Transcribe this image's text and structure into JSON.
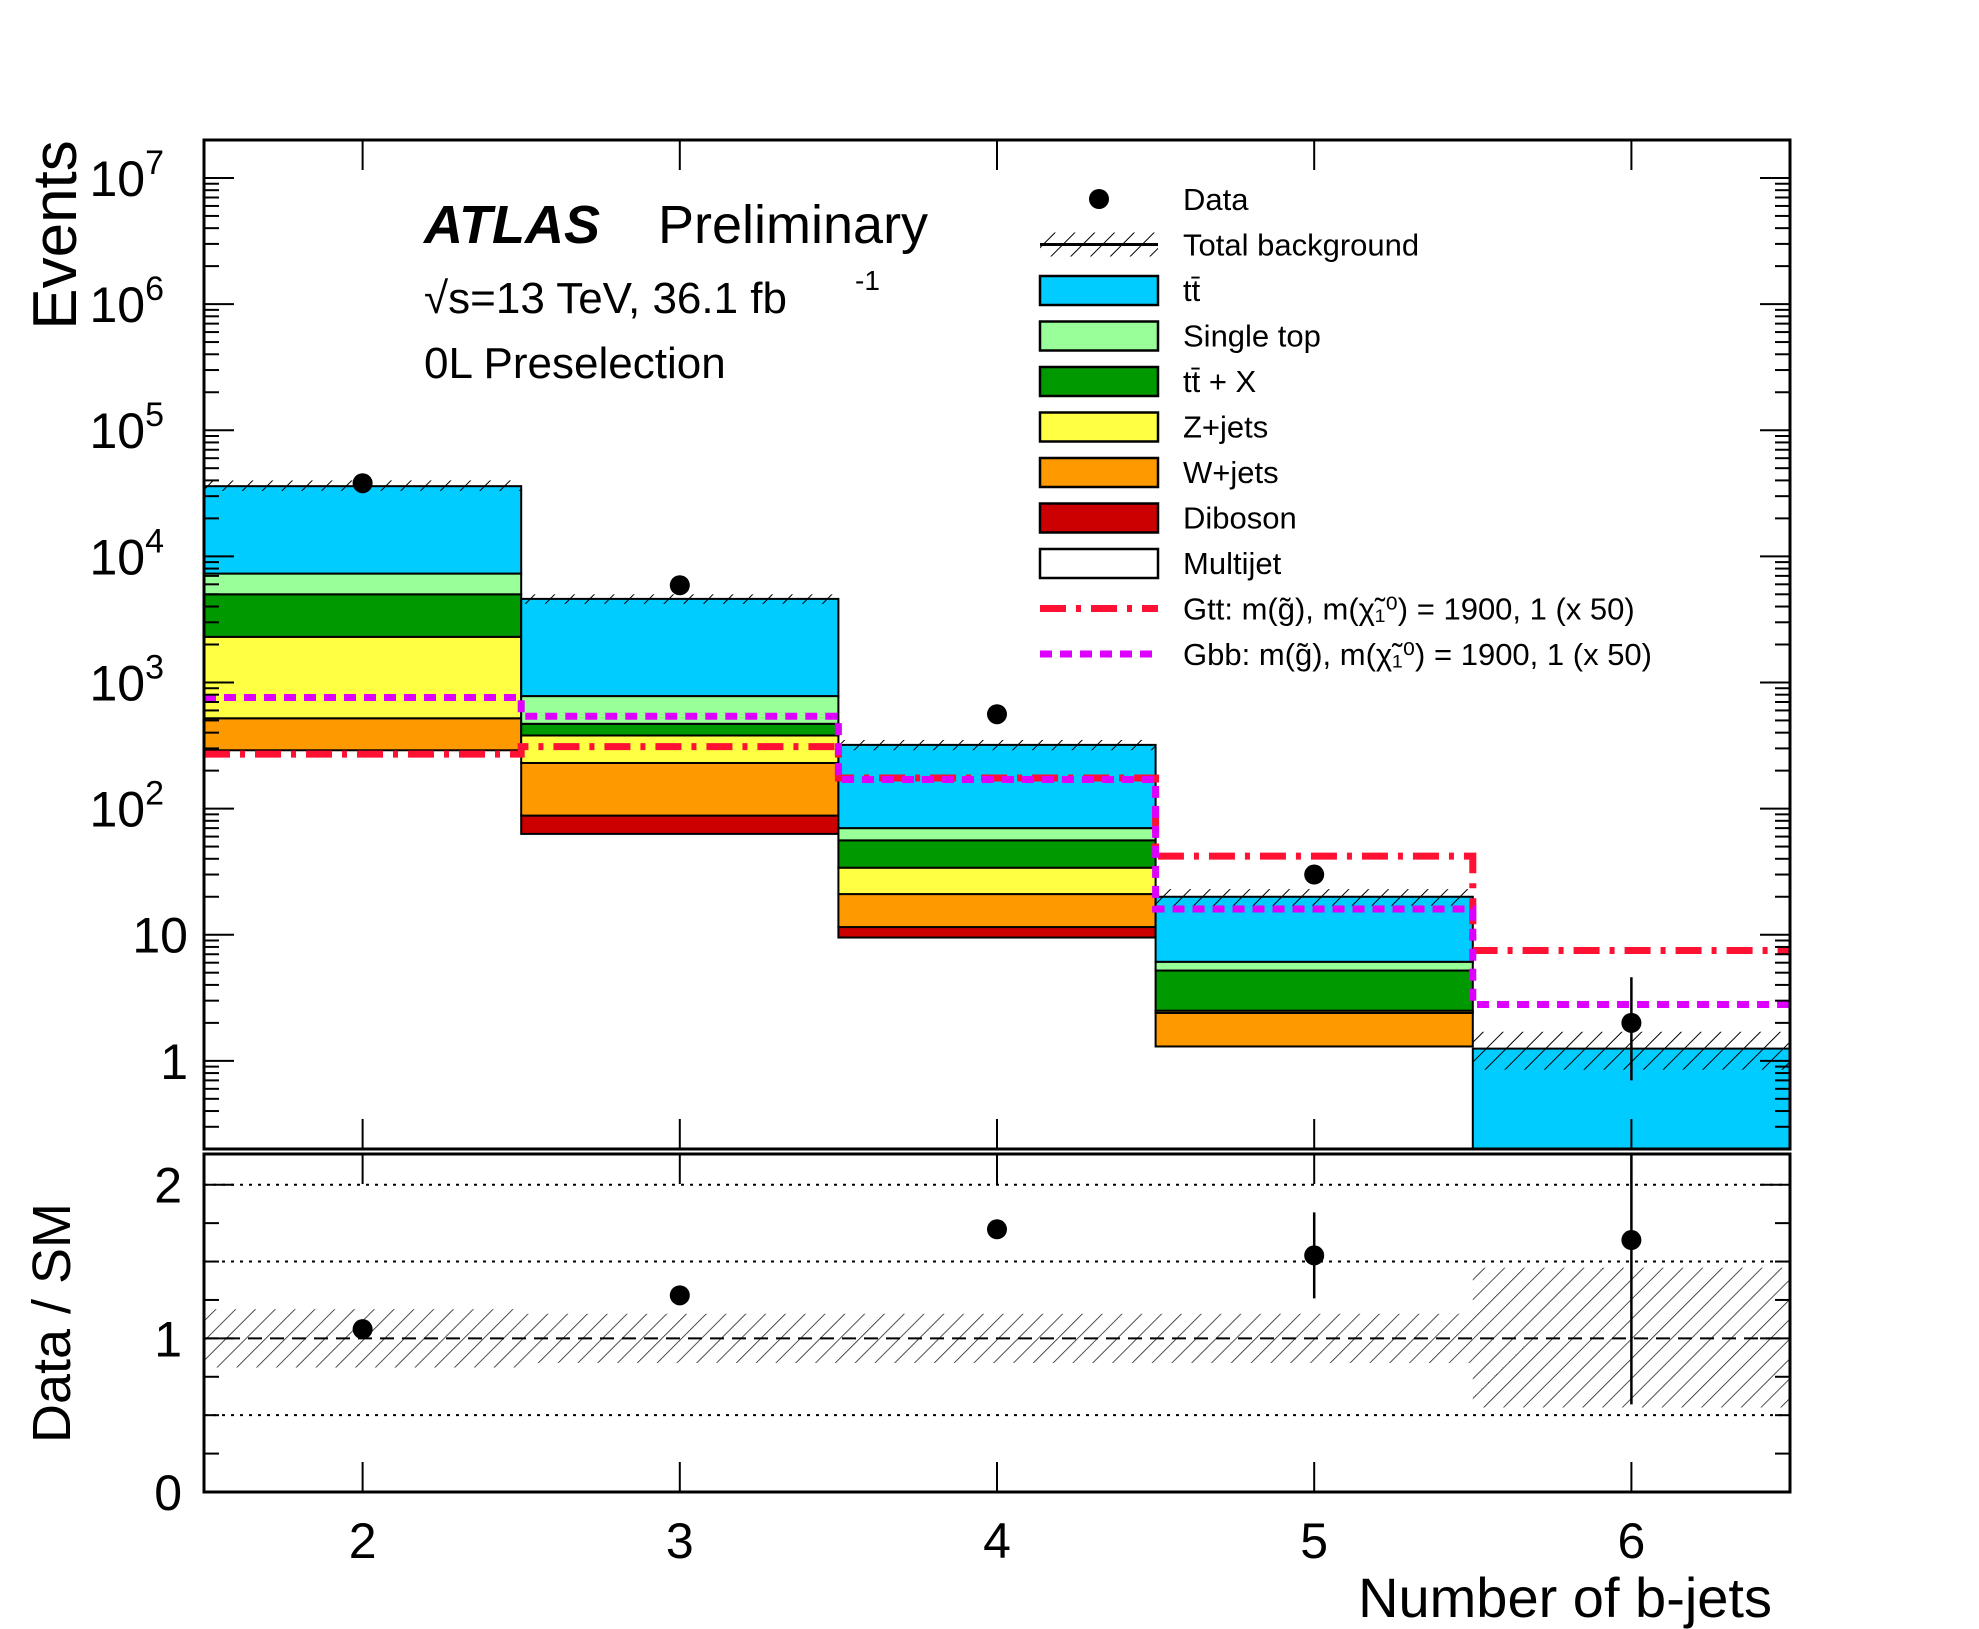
{
  "chart_data": [
    {
      "type": "bar",
      "stacked": true,
      "log_y": true,
      "ylabel": "Events",
      "ylim": [
        0.2,
        20000000
      ],
      "y_ticks": [
        {
          "value": 1,
          "label": "1"
        },
        {
          "value": 10,
          "label": "10"
        },
        {
          "value": 100,
          "label": "10",
          "sup": "2"
        },
        {
          "value": 1000,
          "label": "10",
          "sup": "3"
        },
        {
          "value": 10000,
          "label": "10",
          "sup": "4"
        },
        {
          "value": 100000,
          "label": "10",
          "sup": "5"
        },
        {
          "value": 1000000,
          "label": "10",
          "sup": "6"
        },
        {
          "value": 10000000,
          "label": "10",
          "sup": "7"
        }
      ],
      "x_bins": [
        [
          1.5,
          2.5
        ],
        [
          2.5,
          3.5
        ],
        [
          3.5,
          4.5
        ],
        [
          4.5,
          5.5
        ],
        [
          5.5,
          6.5
        ]
      ],
      "stack_order": [
        "diboson",
        "wjets",
        "zjets",
        "ttx",
        "singletop",
        "ttbar"
      ],
      "stack_edges": [
        {
          "boundaries": [
            290,
            520,
            2300,
            5000,
            7300,
            36000
          ]
        },
        {
          "boundaries": [
            63,
            88,
            230,
            380,
            470,
            780,
            4600
          ]
        },
        {
          "boundaries": [
            9.5,
            11.5,
            21,
            34,
            56,
            70,
            320
          ]
        },
        {
          "boundaries": [
            1.3,
            2.4,
            2.5,
            5.2,
            6.1,
            20
          ]
        },
        {
          "boundaries": [
            0.2,
            1.25
          ]
        }
      ],
      "series": [
        {
          "key": "ttbar",
          "color": "#00ccff"
        },
        {
          "key": "singletop",
          "color": "#99ff99"
        },
        {
          "key": "ttx",
          "color": "#009900"
        },
        {
          "key": "zjets",
          "color": "#ffff44"
        },
        {
          "key": "wjets",
          "color": "#ff9900"
        },
        {
          "key": "diboson",
          "color": "#cc0000"
        }
      ],
      "total_background": [
        36000,
        4600,
        320,
        20,
        1.25
      ],
      "total_background_unc_band": [
        [
          33000,
          40000
        ],
        [
          4200,
          5000
        ],
        [
          290,
          350
        ],
        [
          17,
          23
        ],
        [
          0.85,
          1.7
        ]
      ],
      "data": {
        "x": [
          2,
          3,
          4,
          5,
          6
        ],
        "y": [
          38000,
          5900,
          560,
          30,
          2.0
        ],
        "err_low": [
          0,
          0,
          0,
          0,
          1.3
        ],
        "err_high": [
          0,
          0,
          0,
          0,
          2.6
        ]
      },
      "signal_gtt": {
        "values": [
          270,
          310,
          175,
          42,
          7.5
        ],
        "color": "#ff1133"
      },
      "signal_gbb": {
        "values": [
          760,
          540,
          170,
          16,
          2.8
        ],
        "color": "#dd00ff"
      },
      "legend": [
        {
          "label": "Data",
          "style": "marker"
        },
        {
          "label": "Total background",
          "style": "hatch"
        },
        {
          "label": "tt̄",
          "style": "fill",
          "color": "#00ccff"
        },
        {
          "label": "Single top",
          "style": "fill",
          "color": "#99ff99"
        },
        {
          "label": "tt̄ + X",
          "style": "fill",
          "color": "#009900"
        },
        {
          "label": "Z+jets",
          "style": "fill",
          "color": "#ffff44"
        },
        {
          "label": "W+jets",
          "style": "fill",
          "color": "#ff9900"
        },
        {
          "label": "Diboson",
          "style": "fill",
          "color": "#cc0000"
        },
        {
          "label": "Multijet",
          "style": "fill",
          "color": "#ffffff"
        },
        {
          "label": "Gtt: m(g̃), m(χ̃₁⁰) = 1900, 1 (x 50)",
          "style": "dashdot",
          "color": "#ff1133"
        },
        {
          "label": "Gbb: m(g̃), m(χ̃₁⁰) = 1900, 1 (x 50)",
          "style": "dashed",
          "color": "#dd00ff"
        }
      ],
      "annotations": {
        "experiment": "ATLAS",
        "status": "Preliminary",
        "energy_lumi": "√s=13 TeV, 36.1 fb",
        "lumi_sup": "-1",
        "selection": "0L Preselection"
      }
    },
    {
      "type": "scatter",
      "ylabel": "Data / SM",
      "xlabel": "Number of b-jets",
      "ylim": [
        0,
        2.2
      ],
      "xlim": [
        1.5,
        6.5
      ],
      "y_ticks": [
        {
          "value": 0,
          "label": "0"
        },
        {
          "value": 1,
          "label": "1"
        },
        {
          "value": 2,
          "label": "2"
        }
      ],
      "x_ticks": [
        {
          "value": 2,
          "label": "2"
        },
        {
          "value": 3,
          "label": "3"
        },
        {
          "value": 4,
          "label": "4"
        },
        {
          "value": 5,
          "label": "5"
        },
        {
          "value": 6,
          "label": "6"
        }
      ],
      "reference_lines": [
        0.5,
        1.0,
        1.5,
        2.0
      ],
      "ratio": {
        "x": [
          2,
          3,
          4,
          5,
          6
        ],
        "y": [
          1.06,
          1.28,
          1.71,
          1.54,
          1.64
        ],
        "err_low": [
          0,
          0,
          0,
          0,
          1.07
        ],
        "err_high": [
          0,
          0,
          0,
          0,
          0.56
        ],
        "err_low_3": [
          0,
          0,
          0,
          0.28,
          0
        ]
      },
      "unc_band": [
        [
          0.81,
          1.19
        ],
        [
          0.84,
          1.16
        ],
        [
          0.84,
          1.16
        ],
        [
          0.84,
          1.16
        ],
        [
          0.55,
          1.46
        ]
      ]
    }
  ]
}
